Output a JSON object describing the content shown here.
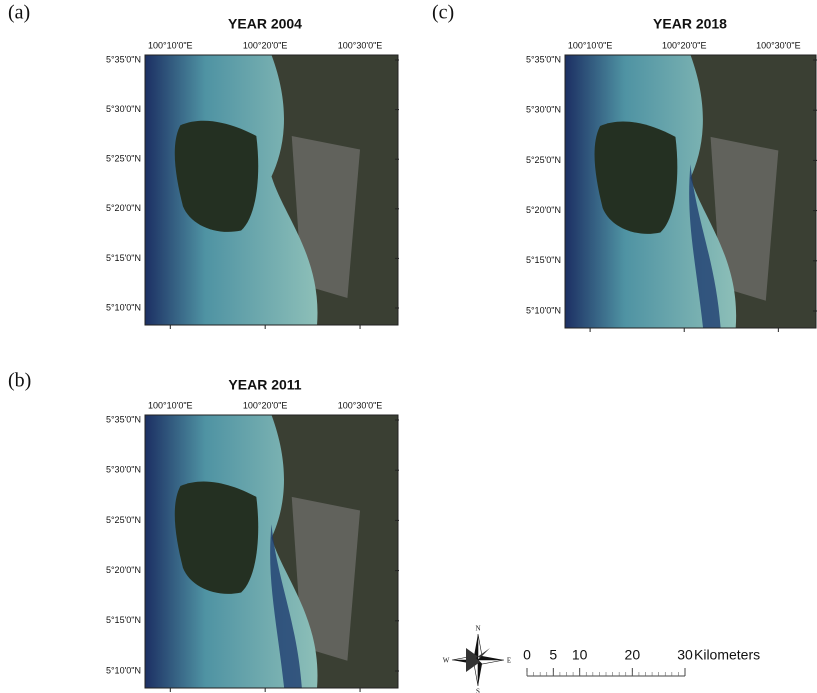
{
  "panels": [
    {
      "label": "(a)",
      "title": "YEAR 2004",
      "lon_ticks": [
        "100°10'0\"E",
        "100°20'0\"E",
        "100°30'0\"E"
      ],
      "lat_ticks": [
        "5°35'0\"N",
        "5°30'0\"N",
        "5°25'0\"N",
        "5°20'0\"N",
        "5°15'0\"N",
        "5°10'0\"N"
      ]
    },
    {
      "label": "(b)",
      "title": "YEAR 2011",
      "lon_ticks": [
        "100°10'0\"E",
        "100°20'0\"E",
        "100°30'0\"E"
      ],
      "lat_ticks": [
        "5°35'0\"N",
        "5°30'0\"N",
        "5°25'0\"N",
        "5°20'0\"N",
        "5°15'0\"N",
        "5°10'0\"N"
      ]
    },
    {
      "label": "(c)",
      "title": "YEAR 2018",
      "lon_ticks": [
        "100°10'0\"E",
        "100°20'0\"E",
        "100°30'0\"E"
      ],
      "lat_ticks": [
        "5°35'0\"N",
        "5°30'0\"N",
        "5°25'0\"N",
        "5°20'0\"N",
        "5°15'0\"N",
        "5°10'0\"N"
      ]
    }
  ],
  "compass": {
    "n": "N",
    "e": "E",
    "s": "S",
    "w": "W"
  },
  "scale_bar": {
    "ticks": [
      0,
      5,
      10,
      20,
      30
    ],
    "unit": "Kilometers"
  }
}
